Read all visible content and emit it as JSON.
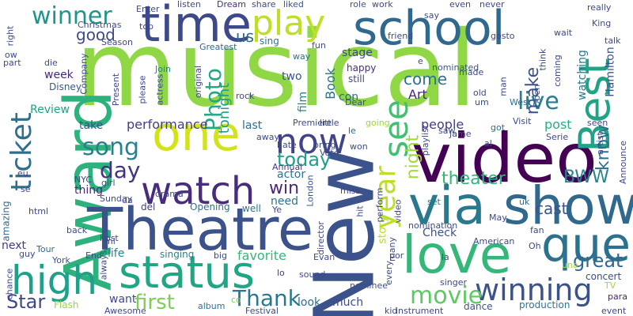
{
  "words": [
    {
      "text": "musical",
      "color": "#8fd744"
    },
    {
      "text": "Award",
      "color": "#2db27d"
    },
    {
      "text": "New",
      "color": "#3b528b"
    },
    {
      "text": "Theatre",
      "color": "#3b528b"
    },
    {
      "text": "video",
      "color": "#440154"
    },
    {
      "text": "school",
      "color": "#31688e"
    },
    {
      "text": "love",
      "color": "#35b779"
    },
    {
      "text": "status",
      "color": "#21a685"
    },
    {
      "text": "time",
      "color": "#3e4989"
    },
    {
      "text": "via",
      "color": "#2a788e"
    },
    {
      "text": "show",
      "color": "#31688e"
    },
    {
      "text": "que",
      "color": "#2c728e"
    },
    {
      "text": "Best",
      "color": "#20a386"
    },
    {
      "text": "one",
      "color": "#d2e21b"
    },
    {
      "text": "high",
      "color": "#1fa088"
    },
    {
      "text": "see",
      "color": "#44bf70"
    },
    {
      "text": "year",
      "color": "#bddf26"
    },
    {
      "text": "play",
      "color": "#bddf26"
    },
    {
      "text": "watch",
      "color": "#472d7b"
    },
    {
      "text": "now",
      "color": "#414487"
    },
    {
      "text": "winning",
      "color": "#3b528b"
    },
    {
      "text": "ticket",
      "color": "#2e6f8e"
    },
    {
      "text": "movie",
      "color": "#5ec962"
    },
    {
      "text": "song",
      "color": "#26828e"
    },
    {
      "text": "live",
      "color": "#287d8e"
    },
    {
      "text": "winner",
      "color": "#1f958b"
    },
    {
      "text": "Photo",
      "color": "#22a884"
    },
    {
      "text": "Thank",
      "color": "#2a788e"
    },
    {
      "text": "day",
      "color": "#46327e"
    },
    {
      "text": "today",
      "color": "#1f9e89"
    },
    {
      "text": "first",
      "color": "#7ad151"
    },
    {
      "text": "great",
      "color": "#31688e"
    },
    {
      "text": "Star",
      "color": "#3e4989"
    },
    {
      "text": "theater",
      "color": "#32b67a"
    },
    {
      "text": "BWW",
      "color": "#25858e"
    },
    {
      "text": "win",
      "color": "#482878"
    },
    {
      "text": "make",
      "color": "#3b528b"
    },
    {
      "text": "night",
      "color": "#a0da39"
    },
    {
      "text": "know",
      "color": "#2d708e"
    },
    {
      "text": "come",
      "color": "#2c728e"
    },
    {
      "text": "good",
      "color": "#3e4989"
    },
    {
      "text": "cast",
      "color": "#3b528b"
    },
    {
      "text": "tonight",
      "color": "#1f9e89"
    },
    {
      "text": "us",
      "color": "#31688e"
    },
    {
      "text": "performance",
      "color": "#433e85"
    },
    {
      "text": "favorite",
      "color": "#35b779"
    },
    {
      "text": "Art",
      "color": "#482475"
    },
    {
      "text": "Book",
      "color": "#2d708e"
    },
    {
      "text": "people",
      "color": "#433e85"
    },
    {
      "text": "post",
      "color": "#29af7f"
    },
    {
      "text": "watching",
      "color": "#2a788e"
    },
    {
      "text": "Hamilton",
      "color": "#3b528b"
    },
    {
      "text": "actor",
      "color": "#2c728e"
    },
    {
      "text": "look",
      "color": "#2e6e8e"
    },
    {
      "text": "much",
      "color": "#3e4a89"
    },
    {
      "text": "week",
      "color": "#482878"
    },
    {
      "text": "want",
      "color": "#3e4989"
    },
    {
      "text": "life",
      "color": "#25858e"
    },
    {
      "text": "two",
      "color": "#3b528b"
    },
    {
      "text": "film",
      "color": "#25858e"
    },
    {
      "text": "con",
      "color": "#306a8e"
    },
    {
      "text": "story",
      "color": "#b5de2b"
    },
    {
      "text": "stage",
      "color": "#404588"
    },
    {
      "text": "need",
      "color": "#2c728e"
    },
    {
      "text": "last",
      "color": "#2e6e8e"
    },
    {
      "text": "Review",
      "color": "#20a386"
    },
    {
      "text": "take",
      "color": "#3b528b"
    },
    {
      "text": "thing",
      "color": "#472a7a"
    },
    {
      "text": "concert",
      "color": "#3e4989"
    },
    {
      "text": "Check",
      "color": "#3b528b"
    },
    {
      "text": "production",
      "color": "#2a788e"
    },
    {
      "text": "next",
      "color": "#443983"
    },
    {
      "text": "amazing",
      "color": "#31688e"
    },
    {
      "text": "singing",
      "color": "#26828e"
    },
    {
      "text": "dance",
      "color": "#3b528b"
    },
    {
      "text": "Dream",
      "color": "#46327e"
    },
    {
      "text": "sing",
      "color": "#2a788e"
    },
    {
      "text": "Join",
      "color": "#26828e"
    },
    {
      "text": "Greatest",
      "color": "#31688e"
    },
    {
      "text": "fun",
      "color": "#3e4989"
    },
    {
      "text": "way",
      "color": "#2c728e"
    },
    {
      "text": "happy",
      "color": "#472d7b"
    },
    {
      "text": "still",
      "color": "#414487"
    },
    {
      "text": "nominated",
      "color": "#39568c"
    },
    {
      "text": "made",
      "color": "#3e4989"
    },
    {
      "text": "Disney",
      "color": "#39568c"
    },
    {
      "text": "girl",
      "color": "#39568c"
    },
    {
      "text": "NYC",
      "color": "#404588"
    },
    {
      "text": "Opening",
      "color": "#2d708e"
    },
    {
      "text": "del",
      "color": "#433e85"
    },
    {
      "text": "well",
      "color": "#2c728e"
    },
    {
      "text": "London",
      "color": "#39568c"
    },
    {
      "text": "rock",
      "color": "#3e4989"
    },
    {
      "text": "little",
      "color": "#3e4989"
    },
    {
      "text": "going",
      "color": "#9bd93c"
    },
    {
      "text": "uk",
      "color": "#2e6e8e"
    },
    {
      "text": "fan",
      "color": "#3e4989"
    },
    {
      "text": "Tour",
      "color": "#31688e"
    },
    {
      "text": "York",
      "color": "#3b528b"
    },
    {
      "text": "Flash",
      "color": "#95d840"
    },
    {
      "text": "album",
      "color": "#2c728e"
    },
    {
      "text": "co",
      "color": "#75d054"
    },
    {
      "text": "big",
      "color": "#3e4989"
    },
    {
      "text": "lo",
      "color": "#433e85"
    },
    {
      "text": "nominee",
      "color": "#3b528b"
    },
    {
      "text": "una",
      "color": "#a8db34"
    },
    {
      "text": "TV",
      "color": "#a0da39"
    },
    {
      "text": "para",
      "color": "#482475"
    },
    {
      "text": "set",
      "color": "#2c728e"
    },
    {
      "text": "miss",
      "color": "#414487"
    },
    {
      "text": "Annual",
      "color": "#443983"
    },
    {
      "text": "le",
      "color": "#31688e"
    },
    {
      "text": "got",
      "color": "#2e6e8e"
    },
    {
      "text": "West",
      "color": "#2e6e8e"
    },
    {
      "text": "Open",
      "color": "#3b528b"
    },
    {
      "text": "role",
      "color": "#3b528b"
    },
    {
      "text": "work",
      "color": "#3e4989"
    },
    {
      "text": "friend",
      "color": "#3e4989"
    },
    {
      "text": "gosto",
      "color": "#3e4989"
    },
    {
      "text": "share",
      "color": "#3e4989"
    },
    {
      "text": "liked",
      "color": "#3b528b"
    },
    {
      "text": "listen",
      "color": "#3e4989"
    },
    {
      "text": "top",
      "color": "#3e4989"
    },
    {
      "text": "Season",
      "color": "#3e4989"
    },
    {
      "text": "Present",
      "color": "#3e4989"
    },
    {
      "text": "actress",
      "color": "#3e4989"
    },
    {
      "text": "please",
      "color": "#3e4989"
    },
    {
      "text": "say",
      "color": "#3e4989"
    },
    {
      "text": "even",
      "color": "#3e4989"
    },
    {
      "text": "never",
      "color": "#3e4989"
    },
    {
      "text": "really",
      "color": "#3e4989"
    },
    {
      "text": "think",
      "color": "#3e4989"
    },
    {
      "text": "coming",
      "color": "#3e4989"
    },
    {
      "text": "talk",
      "color": "#3e4989"
    },
    {
      "text": "Announce",
      "color": "#3e4989"
    },
    {
      "text": "Serie",
      "color": "#3e4989"
    },
    {
      "text": "al",
      "color": "#3e4989"
    },
    {
      "text": "ow",
      "color": "#3e4989"
    },
    {
      "text": "se",
      "color": "#3e4989"
    },
    {
      "text": "eu",
      "color": "#3e4989"
    },
    {
      "text": "da",
      "color": "#3e4989"
    },
    {
      "text": "html",
      "color": "#3e4989"
    },
    {
      "text": "back",
      "color": "#3e4989"
    },
    {
      "text": "mi",
      "color": "#3e4989"
    },
    {
      "text": "End",
      "color": "#3e4989"
    },
    {
      "text": "always",
      "color": "#3e4989"
    },
    {
      "text": "chance",
      "color": "#3e4989"
    },
    {
      "text": "Ye",
      "color": "#3e4989"
    },
    {
      "text": "sound",
      "color": "#3e4989"
    },
    {
      "text": "por",
      "color": "#3e4989"
    },
    {
      "text": "every",
      "color": "#3e4989"
    },
    {
      "text": "singer",
      "color": "#3e4989"
    },
    {
      "text": "kid",
      "color": "#3e4989"
    },
    {
      "text": "instrument",
      "color": "#3e4989"
    },
    {
      "text": "Festival",
      "color": "#3e4989"
    },
    {
      "text": "Awesome",
      "color": "#3e4989"
    },
    {
      "text": "event",
      "color": "#3e4989"
    },
    {
      "text": "director",
      "color": "#3e4989"
    },
    {
      "text": "perform",
      "color": "#3e4989"
    },
    {
      "text": "Evan",
      "color": "#3e4989"
    },
    {
      "text": "many",
      "color": "#3e4989"
    },
    {
      "text": "la",
      "color": "#3e4989"
    },
    {
      "text": "Oh",
      "color": "#3e4989"
    },
    {
      "text": "American",
      "color": "#3e4989"
    },
    {
      "text": "May",
      "color": "#3e4989"
    },
    {
      "text": "hit",
      "color": "#3e4989"
    },
    {
      "text": "nomination",
      "color": "#3e4989"
    },
    {
      "text": "video",
      "color": "#3e4989"
    },
    {
      "text": "bring",
      "color": "#3e4989"
    },
    {
      "text": "Vote",
      "color": "#3e4989"
    },
    {
      "text": "away",
      "color": "#3e4989"
    },
    {
      "text": "hate",
      "color": "#3e4989"
    },
    {
      "text": "Premiere",
      "color": "#3e4989"
    },
    {
      "text": "won",
      "color": "#3e4989"
    },
    {
      "text": "playlist",
      "color": "#3e4989"
    },
    {
      "text": "saw",
      "color": "#3e4989"
    },
    {
      "text": "Jame",
      "color": "#3e4989"
    },
    {
      "text": "Visit",
      "color": "#3e4989"
    },
    {
      "text": "seen",
      "color": "#3e4989"
    },
    {
      "text": "artist",
      "color": "#3e4989"
    },
    {
      "text": "old",
      "color": "#3e4989"
    },
    {
      "text": "wait",
      "color": "#3e4989"
    },
    {
      "text": "King",
      "color": "#3e4989"
    },
    {
      "text": "Christmas",
      "color": "#3e4989"
    },
    {
      "text": "Enter",
      "color": "#3e4989"
    },
    {
      "text": "right",
      "color": "#3e4989"
    },
    {
      "text": "part",
      "color": "#3e4989"
    },
    {
      "text": "die",
      "color": "#3e4989"
    },
    {
      "text": "Company",
      "color": "#3e4989"
    },
    {
      "text": "original",
      "color": "#3e4989"
    },
    {
      "text": "e",
      "color": "#3e4989"
    },
    {
      "text": "drama",
      "color": "#3e4989"
    },
    {
      "text": "Sunday",
      "color": "#3e4989"
    },
    {
      "text": "host",
      "color": "#3e4989"
    },
    {
      "text": "guy",
      "color": "#3e4989"
    },
    {
      "text": "Dear",
      "color": "#3e4989"
    },
    {
      "text": "man",
      "color": "#3e4989"
    },
    {
      "text": "um",
      "color": "#3e4989"
    }
  ]
}
